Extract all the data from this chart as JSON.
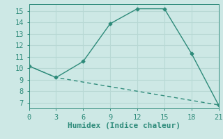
{
  "xlabel": "Humidex (Indice chaleur)",
  "line1_x": [
    0,
    3,
    6,
    9,
    12,
    15,
    18,
    21
  ],
  "line1_y": [
    10.2,
    9.2,
    10.6,
    13.9,
    15.2,
    15.2,
    11.3,
    6.8
  ],
  "line2_x": [
    0,
    3,
    21
  ],
  "line2_y": [
    10.2,
    9.2,
    6.8
  ],
  "line_color": "#2e8b7a",
  "bg_color": "#cde8e5",
  "grid_color": "#b8d8d4",
  "xlim": [
    0,
    21
  ],
  "ylim": [
    6.5,
    15.6
  ],
  "xticks": [
    0,
    3,
    6,
    9,
    12,
    15,
    18,
    21
  ],
  "yticks": [
    7,
    8,
    9,
    10,
    11,
    12,
    13,
    14,
    15
  ],
  "tick_fontsize": 7.5,
  "xlabel_fontsize": 8.0,
  "marker": "D",
  "marker_size": 2.5,
  "linewidth": 1.0
}
